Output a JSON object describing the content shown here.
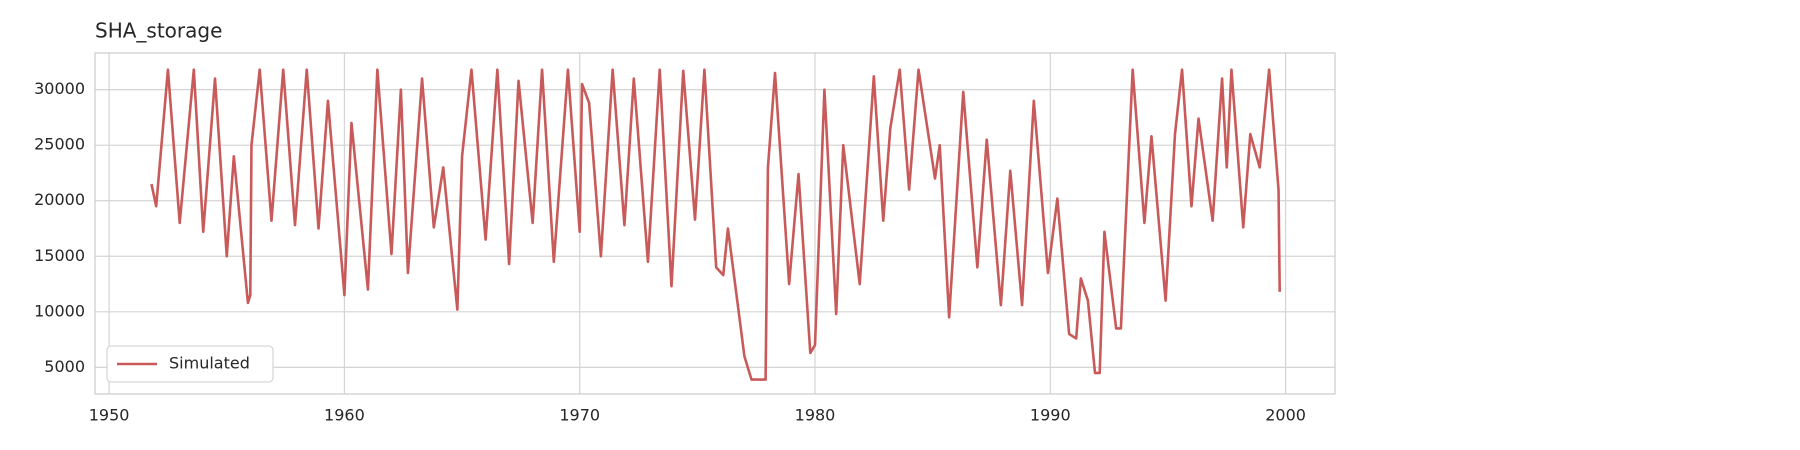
{
  "chart_data": {
    "type": "line",
    "title": "SHA_storage",
    "x": [
      1951.8,
      1952.0,
      1952.5,
      1953.0,
      1953.6,
      1954.0,
      1954.5,
      1955.0,
      1955.3,
      1955.9,
      1956.0,
      1956.05,
      1956.4,
      1956.9,
      1957.4,
      1957.9,
      1958.4,
      1958.9,
      1959.3,
      1960.0,
      1960.3,
      1961.0,
      1961.4,
      1962.0,
      1962.4,
      1962.7,
      1963.3,
      1963.8,
      1964.2,
      1964.8,
      1965.0,
      1965.4,
      1966.0,
      1966.5,
      1967.0,
      1967.4,
      1968.0,
      1968.4,
      1968.9,
      1969.5,
      1970.0,
      1970.1,
      1970.4,
      1970.9,
      1971.4,
      1971.9,
      1972.3,
      1972.9,
      1973.4,
      1973.9,
      1974.4,
      1974.9,
      1975.3,
      1975.8,
      1976.1,
      1976.3,
      1977.0,
      1977.3,
      1977.9,
      1978.0,
      1978.3,
      1978.9,
      1979.3,
      1979.8,
      1980.0,
      1980.4,
      1980.9,
      1981.2,
      1981.9,
      1982.5,
      1982.9,
      1983.2,
      1983.6,
      1984.0,
      1984.4,
      1985.1,
      1985.3,
      1985.7,
      1986.3,
      1986.9,
      1987.3,
      1987.9,
      1988.3,
      1988.8,
      1989.3,
      1989.9,
      1990.3,
      1990.8,
      1991.1,
      1991.3,
      1991.6,
      1991.9,
      1992.1,
      1992.3,
      1992.8,
      1993.0,
      1993.5,
      1994.0,
      1994.3,
      1994.9,
      1995.3,
      1995.6,
      1996.0,
      1996.3,
      1996.9,
      1997.3,
      1997.5,
      1997.7,
      1998.2,
      1998.5,
      1998.9,
      1999.3,
      1999.7,
      1999.75
    ],
    "series": [
      {
        "name": "Simulated",
        "color": "#c95a5a",
        "values": [
          21500,
          19500,
          31800,
          18000,
          31800,
          17200,
          31000,
          15000,
          24000,
          10800,
          11500,
          25000,
          31800,
          18200,
          31800,
          17800,
          31800,
          17500,
          29000,
          11500,
          27000,
          12000,
          31800,
          15200,
          30000,
          13500,
          31000,
          17600,
          23000,
          10200,
          24000,
          31800,
          16500,
          31800,
          14300,
          30800,
          18000,
          31800,
          14500,
          31800,
          17200,
          30500,
          28800,
          15000,
          31800,
          17800,
          31000,
          14500,
          31800,
          12300,
          31700,
          18300,
          31800,
          14000,
          13300,
          17500,
          6000,
          3900,
          3900,
          23000,
          31500,
          12500,
          22400,
          6300,
          7000,
          30000,
          9800,
          25000,
          12500,
          31200,
          18200,
          26500,
          31800,
          21000,
          31800,
          22000,
          25000,
          9500,
          29800,
          14000,
          25500,
          10600,
          22700,
          10600,
          29000,
          13500,
          20200,
          8000,
          7600,
          13000,
          11000,
          4500,
          4500,
          17200,
          8500,
          8500,
          31800,
          18000,
          25800,
          11000,
          26000,
          31800,
          19500,
          27400,
          18200,
          31000,
          23000,
          31800,
          17600,
          26000,
          23000,
          31800,
          21000,
          11800
        ]
      }
    ],
    "xlim": [
      1949.4,
      2002.1
    ],
    "ylim": [
      2600,
      33300
    ],
    "xticks": [
      1950,
      1960,
      1970,
      1980,
      1990,
      2000
    ],
    "yticks": [
      5000,
      10000,
      15000,
      20000,
      25000,
      30000
    ],
    "grid": true,
    "legend": "lower left"
  }
}
